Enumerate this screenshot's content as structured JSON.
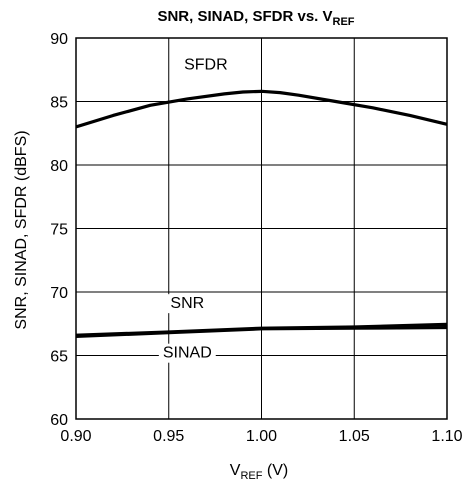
{
  "chart_data": {
    "type": "line",
    "title": "SNR, SINAD, SFDR vs. V",
    "title_subscript": "REF",
    "xlabel": "V",
    "xlabel_subscript": "REF",
    "xlabel_suffix": " (V)",
    "ylabel": "SNR, SINAD, SFDR (dBFS)",
    "xlim": [
      0.9,
      1.1
    ],
    "ylim": [
      60,
      90
    ],
    "xticks": [
      "0.90",
      "0.95",
      "1.00",
      "1.05",
      "1.10"
    ],
    "yticks": [
      "60",
      "65",
      "70",
      "75",
      "80",
      "85",
      "90"
    ],
    "grid": true,
    "series": [
      {
        "name": "SFDR",
        "x": [
          0.9,
          0.92,
          0.94,
          0.96,
          0.98,
          0.99,
          1.0,
          1.01,
          1.02,
          1.04,
          1.06,
          1.08,
          1.1
        ],
        "y": [
          83.0,
          83.9,
          84.7,
          85.2,
          85.6,
          85.75,
          85.8,
          85.7,
          85.5,
          85.0,
          84.5,
          83.9,
          83.2
        ]
      },
      {
        "name": "SNR",
        "x": [
          0.9,
          0.95,
          1.0,
          1.05,
          1.1
        ],
        "y": [
          66.6,
          66.85,
          67.15,
          67.25,
          67.45
        ]
      },
      {
        "name": "SINAD",
        "x": [
          0.9,
          0.95,
          1.0,
          1.05,
          1.1
        ],
        "y": [
          66.5,
          66.8,
          67.1,
          67.15,
          67.2
        ]
      }
    ]
  }
}
